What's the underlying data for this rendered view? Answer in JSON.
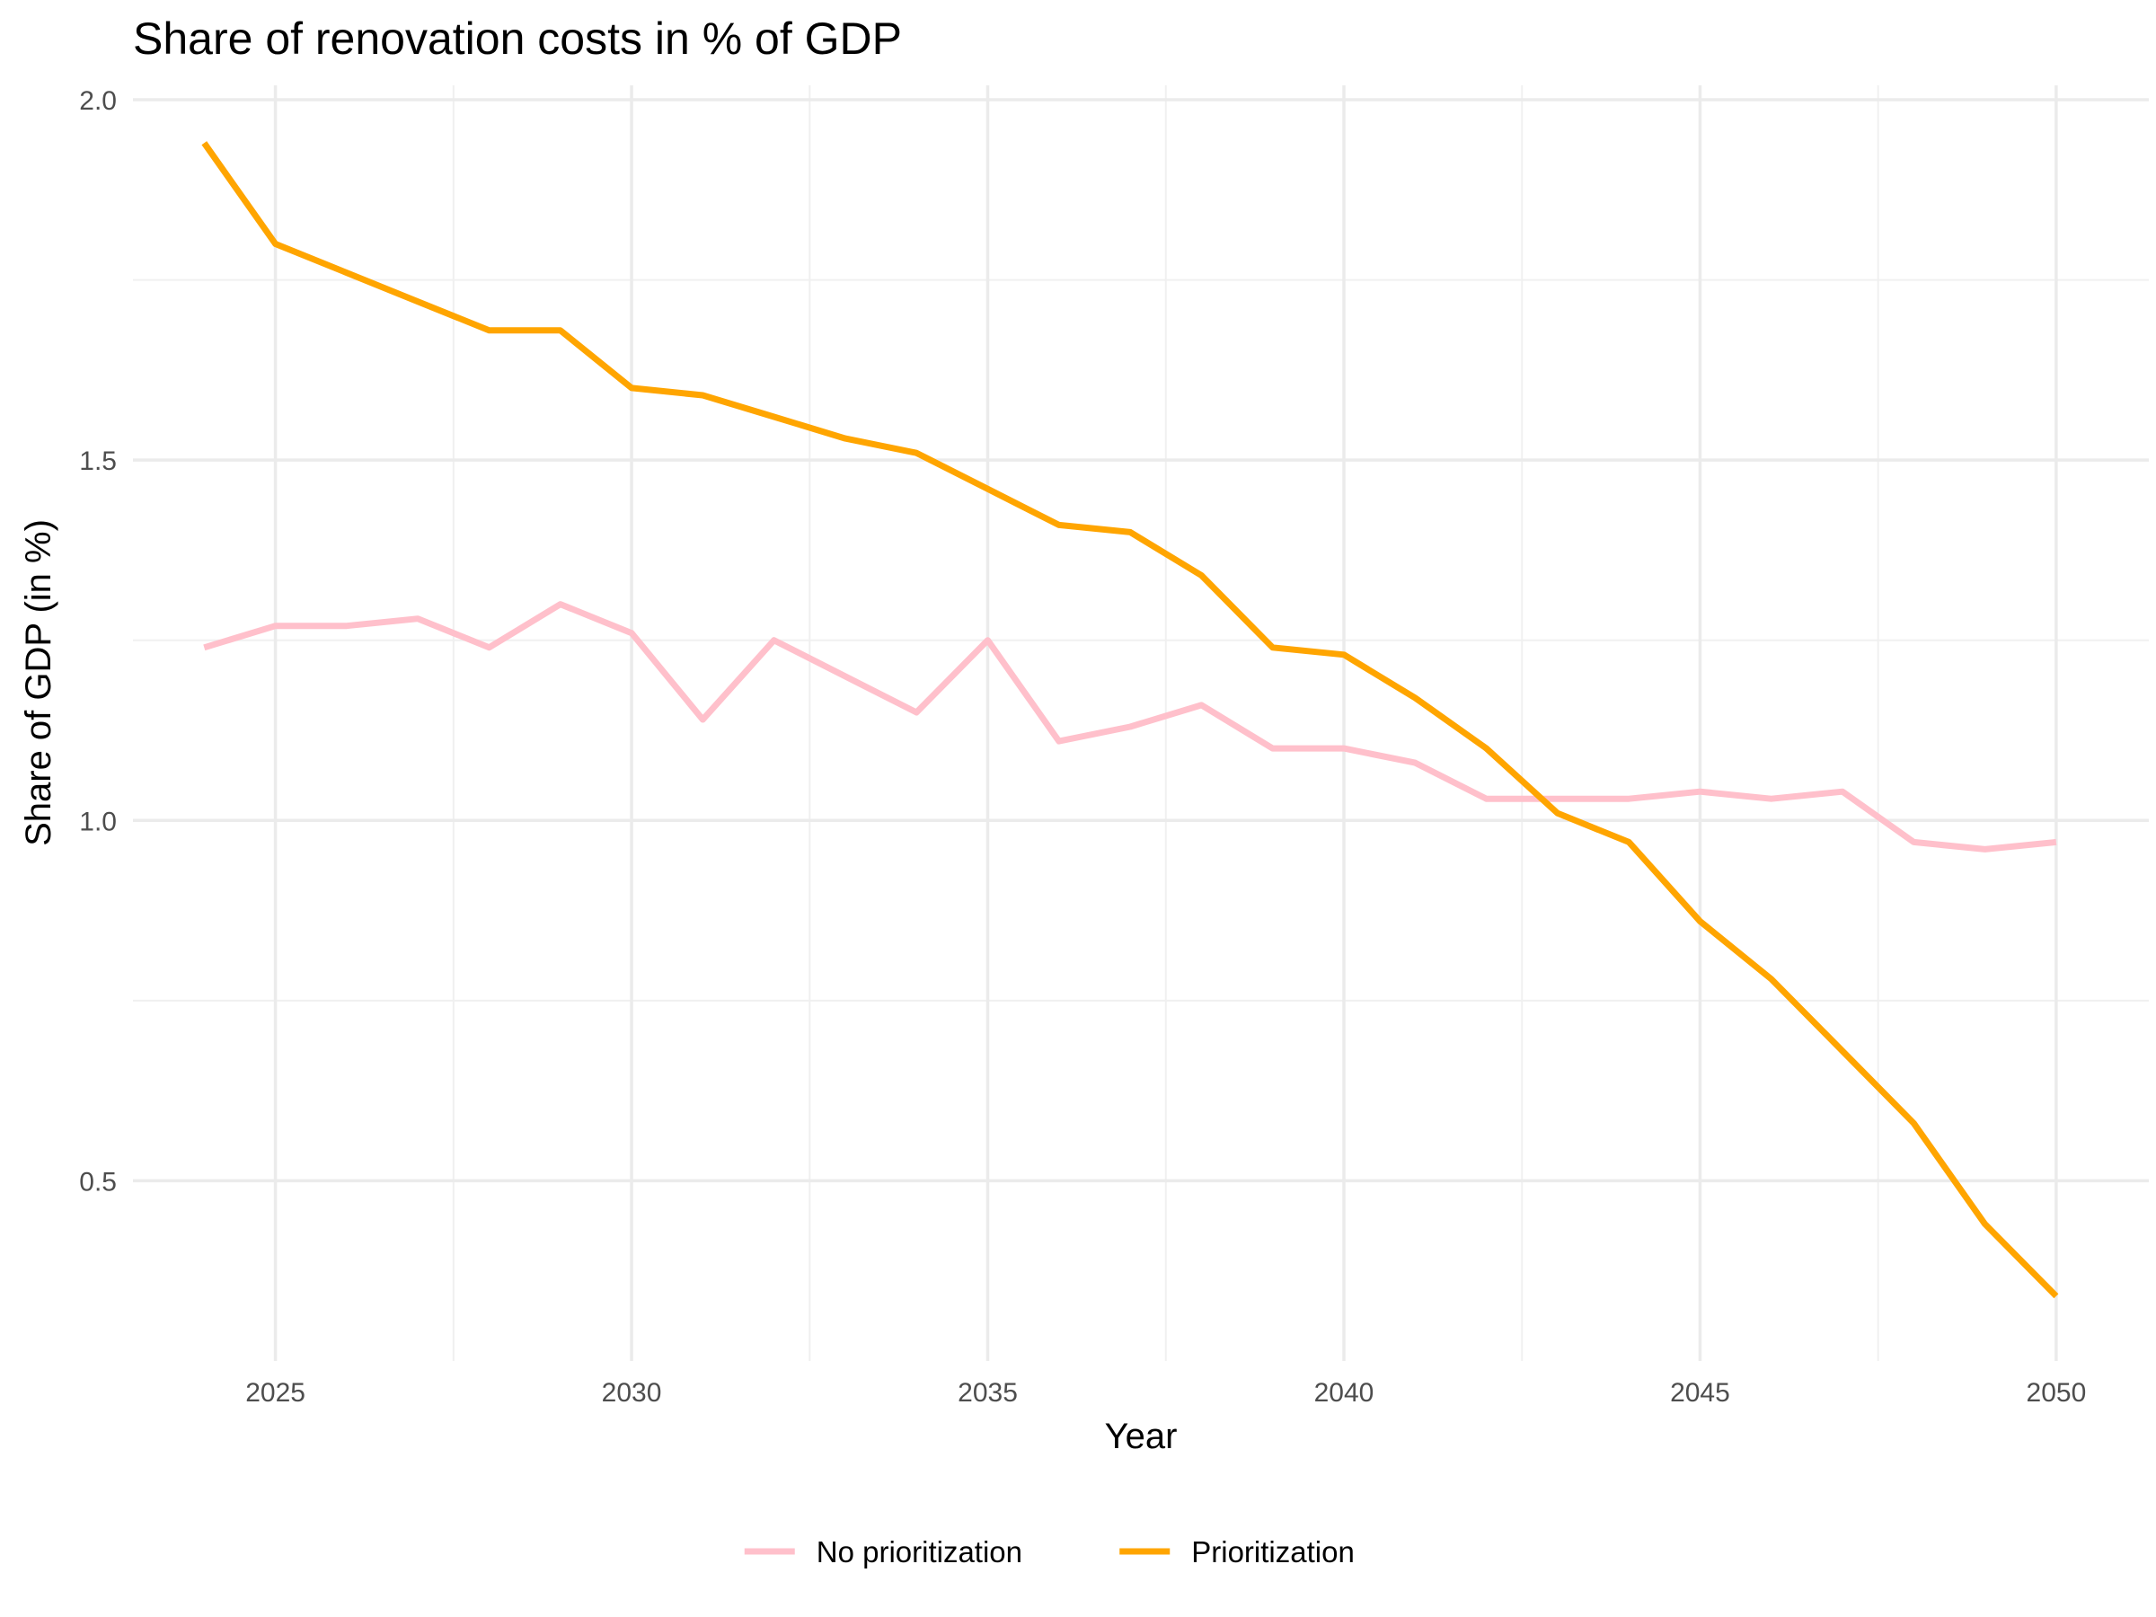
{
  "chart_data": {
    "type": "line",
    "title": "Share of renovation costs in % of GDP",
    "xlabel": "Year",
    "ylabel": "Share of GDP (in %)",
    "xlim": [
      2023.0,
      2051.3
    ],
    "ylim": [
      0.25,
      2.02
    ],
    "x_ticks": [
      "2025",
      "2030",
      "2035",
      "2040",
      "2045",
      "2050"
    ],
    "y_ticks": [
      "0.5",
      "1.0",
      "1.5",
      "2.0"
    ],
    "grid": true,
    "legend_position": "bottom",
    "x": [
      2024,
      2025,
      2026,
      2027,
      2028,
      2029,
      2030,
      2031,
      2032,
      2033,
      2034,
      2035,
      2036,
      2037,
      2038,
      2039,
      2040,
      2041,
      2042,
      2043,
      2044,
      2045,
      2046,
      2047,
      2048,
      2049,
      2050
    ],
    "series": [
      {
        "name": "No prioritization",
        "color": "#FFC0CB",
        "values": [
          1.24,
          1.27,
          1.27,
          1.28,
          1.24,
          1.3,
          1.26,
          1.14,
          1.25,
          1.2,
          1.15,
          1.25,
          1.11,
          1.13,
          1.16,
          1.1,
          1.1,
          1.08,
          1.03,
          1.03,
          1.03,
          1.04,
          1.03,
          1.04,
          0.97,
          0.96,
          0.97
        ]
      },
      {
        "name": "Prioritization",
        "color": "#FFA500",
        "values": [
          1.94,
          1.8,
          1.76,
          1.72,
          1.68,
          1.68,
          1.6,
          1.59,
          1.56,
          1.53,
          1.51,
          1.46,
          1.41,
          1.4,
          1.34,
          1.24,
          1.23,
          1.17,
          1.1,
          1.01,
          0.97,
          0.86,
          0.78,
          0.68,
          0.58,
          0.44,
          0.34
        ]
      }
    ]
  }
}
